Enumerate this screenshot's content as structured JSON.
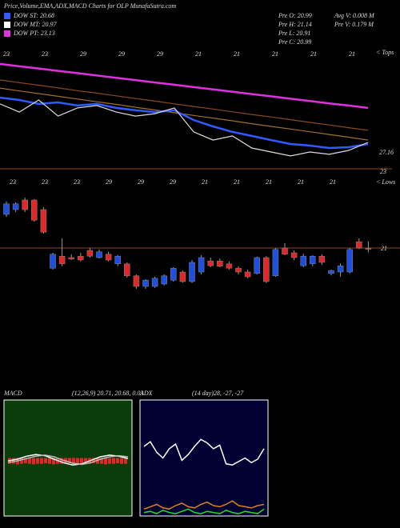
{
  "header": {
    "title": "Price,Volume,EMA,ADX,MACD Charts for OLP MunafaSutra.com",
    "legend": [
      {
        "name": "DOW ST: 20.68",
        "color": "#2f5bff"
      },
      {
        "name": "DOW MT: 20.97",
        "color": "#ffffff"
      },
      {
        "name": "DOW PT: 23.13",
        "color": "#e030e0"
      }
    ],
    "info": [
      "Pre O: 20.99",
      "Pre H: 21.14",
      "Pre L: 20.91",
      "Pre C: 20.99",
      "Avg V: 0.008 M",
      "Pre V: 0.179 M"
    ]
  },
  "chart_data": [
    {
      "type": "line",
      "right_label": "< Tops",
      "annotation": "27.16",
      "date_labels": [
        "23",
        "23",
        "29",
        "29",
        "29",
        "21",
        "21",
        "21",
        "21",
        "21"
      ],
      "categories": [
        null,
        null,
        null,
        null,
        null,
        null,
        null,
        null,
        null,
        null,
        null,
        null,
        null,
        null,
        null,
        null,
        null,
        null,
        null,
        null
      ],
      "ylim": [
        22.8,
        30.6
      ],
      "yticks": [
        23
      ],
      "series": [
        {
          "color": "#e030e0",
          "values": [
            29.6,
            29.45,
            29.31,
            29.16,
            29.02,
            28.87,
            28.73,
            28.58,
            28.43,
            28.29,
            28.14,
            28.0,
            27.85,
            27.7,
            27.56,
            27.41,
            27.27,
            27.12,
            26.98,
            26.83
          ]
        },
        {
          "color": "#8b4a1c",
          "values": [
            28.59,
            28.42,
            28.26,
            28.09,
            27.92,
            27.76,
            27.59,
            27.42,
            27.26,
            27.09,
            26.92,
            26.76,
            26.59,
            26.42,
            26.26,
            26.09,
            25.92,
            25.76,
            25.59,
            25.42
          ]
        },
        {
          "color": "#a0702a",
          "values": [
            28.08,
            27.9,
            27.73,
            27.56,
            27.39,
            27.22,
            27.05,
            26.87,
            26.7,
            26.53,
            26.36,
            26.19,
            26.02,
            25.84,
            25.67,
            25.5,
            25.33,
            25.16,
            24.99,
            24.81
          ]
        },
        {
          "color": "#2f5bff",
          "values": [
            27.48,
            27.33,
            27.08,
            27.18,
            26.98,
            27.08,
            26.83,
            26.68,
            26.57,
            26.68,
            26.07,
            25.67,
            25.32,
            25.07,
            24.81,
            24.56,
            24.46,
            24.31,
            24.36,
            24.56
          ]
        },
        {
          "color": "#dddddd",
          "values": [
            27.08,
            26.57,
            27.33,
            26.32,
            26.83,
            26.98,
            26.57,
            26.32,
            26.47,
            26.83,
            25.32,
            24.81,
            25.07,
            24.31,
            24.06,
            23.81,
            24.06,
            23.91,
            24.16,
            24.66
          ]
        }
      ]
    },
    {
      "type": "candlestick",
      "right_label": "< Lows",
      "date_labels": [
        "23",
        "23",
        "23",
        "29",
        "29",
        "29",
        "21",
        "21",
        "21",
        "21",
        "21"
      ],
      "ylim": [
        19.5,
        22.5
      ],
      "yticks": [
        21
      ],
      "up_color": "#1f4fe0",
      "down_color": "#e02828",
      "open": [
        21.7,
        21.8,
        22.0,
        22.0,
        21.8,
        20.58,
        20.83,
        20.8,
        20.83,
        20.95,
        20.8,
        20.87,
        20.67,
        20.67,
        20.42,
        20.2,
        20.2,
        20.25,
        20.33,
        20.5,
        20.3,
        20.5,
        20.73,
        20.73,
        20.67,
        20.58,
        20.5,
        20.47,
        20.8,
        20.42,
        21.0,
        20.9,
        20.63,
        20.67,
        20.83,
        20.47,
        20.5,
        20.5,
        21.13,
        20.99
      ],
      "high": [
        21.97,
        21.95,
        22.05,
        22.02,
        21.85,
        20.9,
        21.2,
        20.87,
        20.9,
        21.0,
        20.97,
        20.92,
        20.85,
        20.7,
        20.45,
        20.35,
        20.4,
        20.45,
        20.6,
        20.53,
        20.75,
        20.85,
        20.8,
        20.78,
        20.72,
        20.62,
        20.55,
        20.82,
        20.83,
        21.0,
        21.1,
        20.95,
        20.88,
        20.85,
        20.87,
        20.55,
        20.68,
        21.0,
        21.2,
        21.14
      ],
      "low": [
        21.65,
        21.75,
        21.75,
        21.55,
        21.3,
        20.55,
        20.62,
        20.75,
        20.72,
        20.8,
        20.78,
        20.72,
        20.62,
        20.38,
        20.15,
        20.15,
        20.17,
        20.22,
        20.3,
        20.28,
        20.27,
        20.45,
        20.6,
        20.6,
        20.55,
        20.45,
        20.37,
        20.45,
        20.27,
        20.4,
        20.85,
        20.75,
        20.6,
        20.62,
        20.65,
        20.43,
        20.4,
        20.47,
        20.98,
        20.91
      ],
      "close": [
        21.92,
        21.92,
        21.8,
        21.58,
        21.33,
        20.87,
        20.67,
        20.77,
        20.75,
        20.83,
        20.92,
        20.75,
        20.83,
        20.42,
        20.2,
        20.33,
        20.37,
        20.42,
        20.58,
        20.3,
        20.7,
        20.8,
        20.63,
        20.62,
        20.58,
        20.5,
        20.4,
        20.8,
        20.3,
        20.97,
        20.87,
        20.8,
        20.83,
        20.83,
        20.7,
        20.53,
        20.63,
        20.97,
        21.0,
        20.99
      ]
    },
    {
      "type": "macd",
      "title": "MACD",
      "subtitle": "(12,26,9) 20.71, 20.68, 0.03",
      "ylim": [
        -1,
        1
      ],
      "background": "#0b3d0b",
      "series": [
        {
          "color": "#ffffff",
          "values": [
            -0.05,
            -0.02,
            0.03,
            0.06,
            0.04,
            -0.02,
            -0.08,
            -0.12,
            -0.1,
            -0.04,
            0.02,
            0.05,
            0.03,
            -0.01
          ]
        },
        {
          "color": "#bbbbbb",
          "values": [
            -0.08,
            -0.05,
            -0.01,
            0.03,
            0.05,
            0.02,
            -0.04,
            -0.09,
            -0.11,
            -0.08,
            -0.02,
            0.02,
            0.04,
            0.02
          ]
        }
      ],
      "histogram": {
        "color": "#e02828",
        "values": [
          -0.1,
          -0.1,
          -0.11,
          -0.1,
          -0.09,
          -0.1,
          -0.11,
          -0.1,
          -0.1,
          -0.09,
          -0.1,
          -0.11,
          -0.1,
          -0.1,
          -0.1,
          -0.09,
          -0.1,
          -0.1,
          -0.11,
          -0.1,
          -0.1,
          -0.09,
          -0.1,
          -0.1,
          -0.11,
          -0.1,
          -0.1,
          -0.09,
          -0.1,
          -0.1
        ]
      }
    },
    {
      "type": "adx",
      "title": "ADX",
      "subtitle": "(14 day)28, -27, -27",
      "ylim": [
        0,
        100
      ],
      "background": "#000033",
      "series": [
        {
          "color": "#ffffff",
          "values": [
            60,
            64,
            55,
            50,
            58,
            62,
            48,
            53,
            60,
            66,
            63,
            58,
            61,
            45,
            44,
            47,
            50,
            46,
            49,
            58
          ]
        },
        {
          "color": "#e08020",
          "values": [
            6,
            8,
            10,
            7,
            6,
            9,
            11,
            8,
            7,
            10,
            12,
            9,
            8,
            10,
            13,
            9,
            8,
            7,
            9,
            10
          ]
        },
        {
          "color": "#20e020",
          "values": [
            3,
            4,
            2,
            5,
            3,
            2,
            4,
            6,
            3,
            2,
            4,
            3,
            2,
            5,
            3,
            2,
            4,
            3,
            2,
            6
          ]
        }
      ]
    }
  ]
}
